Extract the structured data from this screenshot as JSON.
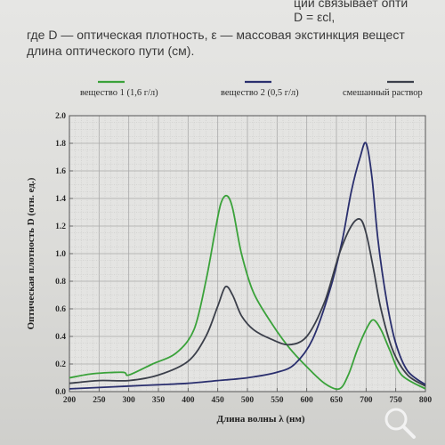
{
  "text": {
    "line0": "ции связывает опти",
    "line1": "D = εcl,",
    "line2": "где D — оптическая плотность, ε — массовая экстинкция вещест",
    "line3": "длина оптического пути (см)."
  },
  "colors": {
    "green": "#3aa23a",
    "navy": "#2a2f6e",
    "dark": "#3b3f4a"
  },
  "icons": [
    "zoom-icon"
  ],
  "chart_data": {
    "type": "line",
    "xlabel": "Длина волны λ (нм)",
    "ylabel": "Оптическая плотность D (отн. ед.)",
    "xlim": [
      200,
      800
    ],
    "ylim": [
      0,
      2.0
    ],
    "xticks": [
      "200",
      "250",
      "300",
      "350",
      "400",
      "450",
      "500",
      "550",
      "600",
      "650",
      "700",
      "750",
      "800"
    ],
    "yticks": [
      "0.0",
      "0.2",
      "0.4",
      "0.6",
      "0.8",
      "1.0",
      "1.2",
      "1.4",
      "1.6",
      "1.8",
      "2.0"
    ],
    "grid": true,
    "legend_position": "top",
    "series": [
      {
        "name": "вещество 1 (1,6 г/л)",
        "color": "green",
        "x": [
          200,
          240,
          290,
          300,
          340,
          380,
          410,
          430,
          445,
          455,
          465,
          475,
          490,
          510,
          540,
          570,
          600,
          630,
          655,
          670,
          685,
          700,
          712,
          725,
          740,
          760,
          800
        ],
        "y": [
          0.1,
          0.13,
          0.14,
          0.12,
          0.2,
          0.28,
          0.45,
          0.8,
          1.15,
          1.36,
          1.42,
          1.33,
          1.0,
          0.72,
          0.5,
          0.32,
          0.18,
          0.06,
          0.02,
          0.12,
          0.3,
          0.45,
          0.52,
          0.45,
          0.3,
          0.12,
          0.02
        ]
      },
      {
        "name": "вещество 2 (0,5 г/л)",
        "color": "navy",
        "x": [
          200,
          250,
          300,
          350,
          400,
          450,
          500,
          550,
          580,
          610,
          640,
          660,
          675,
          690,
          700,
          710,
          720,
          735,
          750,
          770,
          800
        ],
        "y": [
          0.02,
          0.03,
          0.04,
          0.05,
          0.06,
          0.08,
          0.1,
          0.14,
          0.2,
          0.38,
          0.75,
          1.1,
          1.45,
          1.7,
          1.8,
          1.55,
          1.1,
          0.65,
          0.35,
          0.15,
          0.05
        ]
      },
      {
        "name": "смешанный раствор",
        "color": "dark",
        "x": [
          200,
          250,
          300,
          350,
          400,
          430,
          450,
          463,
          475,
          490,
          510,
          540,
          570,
          600,
          630,
          655,
          675,
          690,
          700,
          712,
          725,
          745,
          770,
          800
        ],
        "y": [
          0.06,
          0.08,
          0.08,
          0.12,
          0.22,
          0.4,
          0.62,
          0.76,
          0.7,
          0.55,
          0.45,
          0.38,
          0.34,
          0.4,
          0.65,
          1.0,
          1.2,
          1.25,
          1.15,
          0.9,
          0.6,
          0.3,
          0.12,
          0.04
        ]
      }
    ]
  }
}
